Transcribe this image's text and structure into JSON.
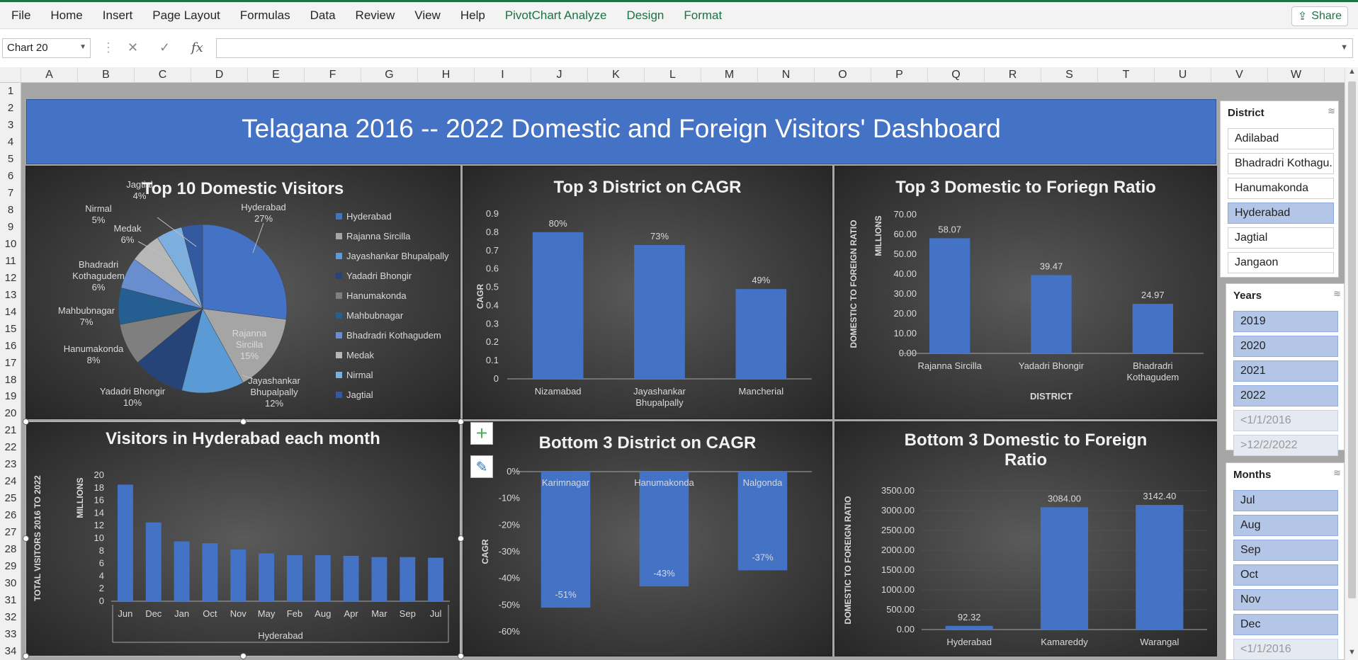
{
  "ribbon": {
    "tabs": [
      "File",
      "Home",
      "Insert",
      "Page Layout",
      "Formulas",
      "Data",
      "Review",
      "View",
      "Help"
    ],
    "context_tabs": [
      "PivotChart Analyze",
      "Design",
      "Format"
    ],
    "share_label": "Share"
  },
  "formula_bar": {
    "name_box": "Chart 20",
    "fx_label": "fx",
    "formula": ""
  },
  "columns": [
    "A",
    "B",
    "C",
    "D",
    "E",
    "F",
    "G",
    "H",
    "I",
    "J",
    "K",
    "L",
    "M",
    "N",
    "O",
    "P",
    "Q",
    "R",
    "S",
    "T",
    "U",
    "V",
    "W"
  ],
  "rows": [
    "1",
    "2",
    "3",
    "4",
    "5",
    "6",
    "7",
    "8",
    "9",
    "10",
    "11",
    "12",
    "13",
    "14",
    "15",
    "16",
    "17",
    "18",
    "19",
    "20",
    "21",
    "22",
    "23",
    "24",
    "25",
    "26",
    "27",
    "28",
    "29",
    "30",
    "31",
    "32",
    "33",
    "34"
  ],
  "dashboard": {
    "title": "Telagana 2016 -- 2022  Domestic and Foreign Visitors' Dashboard"
  },
  "colors": {
    "bar": "#4472c4",
    "banner": "#4472c4",
    "chart_bg": "#404040",
    "text": "#d9d9d9"
  },
  "chart_data": [
    {
      "id": "top10",
      "type": "pie",
      "title": "Top 10 Domestic Visitors",
      "categories": [
        "Hyderabad",
        "Rajanna Sircilla",
        "Jayashankar Bhupalpally",
        "Yadadri Bhongir",
        "Hanumakonda",
        "Mahbubnagar",
        "Bhadradri Kothagudem",
        "Medak",
        "Nirmal",
        "Jagtial"
      ],
      "values": [
        27,
        15,
        12,
        10,
        8,
        7,
        6,
        6,
        5,
        4
      ],
      "labels": [
        "Hyderabad\n27%",
        "Rajanna\nSircilla\n15%",
        "Jayashankar\nBhupalpally\n12%",
        "Yadadri Bhongir\n10%",
        "Hanumakonda\n8%",
        "Mahbubnagar\n7%",
        "Bhadradri\nKothagudem\n6%",
        "Medak\n6%",
        "Nirmal\n5%",
        "Jagtial\n4%"
      ],
      "colors": [
        "#4472c4",
        "#a5a5a5",
        "#5b9bd5",
        "#264478",
        "#7f7f7f",
        "#255e91",
        "#698ed0",
        "#b7b7b7",
        "#7cafdd",
        "#335aa1"
      ],
      "legend": "right"
    },
    {
      "id": "top3cagr",
      "type": "bar",
      "title": "Top 3 District on CAGR",
      "categories": [
        "Nizamabad",
        "Jayashankar\nBhupalpally",
        "Mancherial"
      ],
      "values": [
        0.8,
        0.73,
        0.49
      ],
      "data_labels": [
        "80%",
        "73%",
        "49%"
      ],
      "ylabel": "CAGR",
      "ylim": [
        0,
        0.9
      ],
      "yticks": [
        "0",
        "0.1",
        "0.2",
        "0.3",
        "0.4",
        "0.5",
        "0.6",
        "0.7",
        "0.8",
        "0.9"
      ]
    },
    {
      "id": "top3ratio",
      "type": "bar",
      "title": "Top 3 Domestic to Foriegn Ratio",
      "categories": [
        "Rajanna Sircilla",
        "Yadadri Bhongir",
        "Bhadradri\nKothagudem"
      ],
      "values": [
        58.07,
        39.47,
        24.97
      ],
      "data_labels": [
        "58.07",
        "39.47",
        "24.97"
      ],
      "ylabel": "DOMESTIC TO FOREIGN RATIO",
      "ylabel2": "MILLIONS",
      "xlabel": "DISTRICT",
      "ylim": [
        0,
        70
      ],
      "yticks": [
        "0.00",
        "10.00",
        "20.00",
        "30.00",
        "40.00",
        "50.00",
        "60.00",
        "70.00"
      ]
    },
    {
      "id": "monthly",
      "type": "bar",
      "title": "Visitors in Hyderabad each month",
      "categories": [
        "Jun",
        "Dec",
        "Jan",
        "Oct",
        "Nov",
        "May",
        "Feb",
        "Aug",
        "Apr",
        "Mar",
        "Sep",
        "Jul"
      ],
      "values": [
        18.5,
        12.5,
        9.5,
        9.2,
        8.2,
        7.6,
        7.3,
        7.3,
        7.2,
        7.0,
        7.0,
        6.9
      ],
      "ylabel": "TOTAL VISITORS 2016 TO 2022",
      "ylabel2": "MILLIONS",
      "xlabel": "Hyderabad",
      "ylim": [
        0,
        20
      ],
      "yticks": [
        "0",
        "2",
        "4",
        "6",
        "8",
        "10",
        "12",
        "14",
        "16",
        "18",
        "20"
      ]
    },
    {
      "id": "bottom3cagr",
      "type": "bar",
      "title": "Bottom 3 District on CAGR",
      "categories": [
        "Karimnagar",
        "Hanumakonda",
        "Nalgonda"
      ],
      "values": [
        -0.51,
        -0.43,
        -0.37
      ],
      "data_labels": [
        "-51%",
        "-43%",
        "-37%"
      ],
      "ylabel": "CAGR",
      "ylim": [
        -0.6,
        0
      ],
      "yticks": [
        "0%",
        "-10%",
        "-20%",
        "-30%",
        "-40%",
        "-50%",
        "-60%"
      ]
    },
    {
      "id": "bottom3ratio",
      "type": "bar",
      "title": "Bottom 3 Domestic to Foreign Ratio",
      "categories": [
        "Hyderabad",
        "Kamareddy",
        "Warangal"
      ],
      "values": [
        92.32,
        3084.0,
        3142.4
      ],
      "data_labels": [
        "92.32",
        "3084.00",
        "3142.40"
      ],
      "ylabel": "DOMESTIC TO FOREIGN RATIO",
      "ylim": [
        0,
        3500
      ],
      "yticks": [
        "0.00",
        "500.00",
        "1000.00",
        "1500.00",
        "2000.00",
        "2500.00",
        "3000.00",
        "3500.00"
      ]
    }
  ],
  "slicers": {
    "district": {
      "header": "District",
      "items": [
        "Adilabad",
        "Bhadradri Kothagu...",
        "Hanumakonda",
        "Hyderabad",
        "Jagtial",
        "Jangaon"
      ],
      "selected": [
        3
      ]
    },
    "years": {
      "header": "Years",
      "items": [
        "2019",
        "2020",
        "2021",
        "2022",
        "<1/1/2016",
        ">12/2/2022"
      ],
      "selected": [
        0,
        1,
        2,
        3
      ],
      "dim": [
        4,
        5
      ]
    },
    "months": {
      "header": "Months",
      "items": [
        "Jul",
        "Aug",
        "Sep",
        "Oct",
        "Nov",
        "Dec",
        "<1/1/2016"
      ],
      "selected": [
        0,
        1,
        2,
        3,
        4,
        5
      ],
      "dim": [
        6
      ]
    }
  }
}
